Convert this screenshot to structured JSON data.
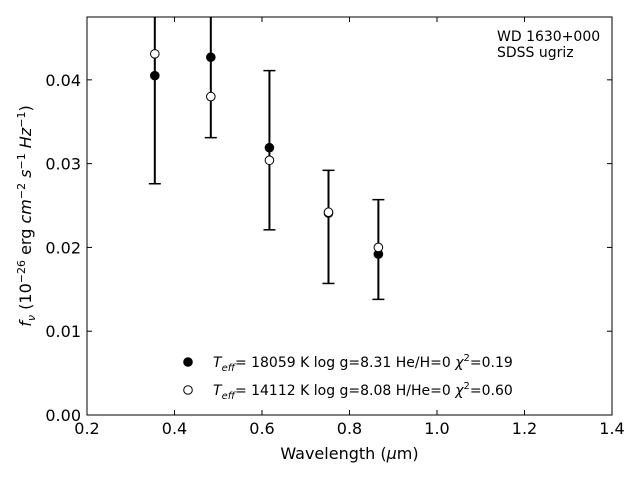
{
  "chart_data": {
    "type": "scatter",
    "title": "",
    "xlabel": "Wavelength (μm)",
    "ylabel": "fν (10⁻²⁶ erg cm⁻² s⁻¹ Hz⁻¹)",
    "xlim": [
      0.2,
      1.4
    ],
    "ylim": [
      0.0,
      0.0475
    ],
    "x_ticks": [
      "0.2",
      "0.4",
      "0.6",
      "0.8",
      "1.0",
      "1.2",
      "1.4"
    ],
    "y_ticks": [
      "0.00",
      "0.01",
      "0.02",
      "0.03",
      "0.04"
    ],
    "grid": false,
    "legend_placement": "bottom-center",
    "annotation": [
      "WD 1630+000",
      "SDSS ugriz"
    ],
    "observed": {
      "x": [
        0.355,
        0.483,
        0.617,
        0.752,
        0.866
      ],
      "y": [
        0.0405,
        0.0427,
        0.0319,
        0.0241,
        0.0192
      ],
      "yerr_low": [
        0.0276,
        0.0331,
        0.0221,
        0.0157,
        0.0138
      ],
      "yerr_high": [
        0.0475,
        0.0475,
        0.0411,
        0.0292,
        0.0257
      ]
    },
    "series": [
      {
        "name": "Teff= 18059 K  log g=8.31  He/H=0  χ²=0.19",
        "marker": "filled-circle",
        "x": [
          0.355,
          0.483,
          0.617,
          0.752,
          0.866
        ],
        "y": [
          0.0405,
          0.0427,
          0.0319,
          0.0241,
          0.0192
        ]
      },
      {
        "name": "Teff= 14112 K  log g=8.08  H/He=0  χ²=0.60",
        "marker": "open-circle",
        "x": [
          0.355,
          0.483,
          0.617,
          0.752,
          0.866
        ],
        "y": [
          0.0431,
          0.038,
          0.0304,
          0.0242,
          0.02
        ]
      }
    ]
  },
  "legend": [
    {
      "prefix": "T",
      "sub": "eff",
      "rest": "= 18059 K  log g=8.31  He/H=0  ",
      "chi": "χ",
      "sup": "2",
      "tail": "=0.19"
    },
    {
      "prefix": "T",
      "sub": "eff",
      "rest": "= 14112 K  log g=8.08  H/He=0  ",
      "chi": "χ",
      "sup": "2",
      "tail": "=0.60"
    }
  ],
  "xlabel_parts": {
    "main": "Wavelength (",
    "mu": "μ",
    "tail": "m)"
  },
  "ylabel_parts": {
    "f": "f",
    "nu": "ν",
    "open": " (10",
    "e1": "−26",
    "erg": " erg ",
    "cm": "cm",
    "e2": "−2",
    "s": " s",
    "e3": "−1",
    "hz": " Hz",
    "e4": "−1",
    "close": ")"
  }
}
